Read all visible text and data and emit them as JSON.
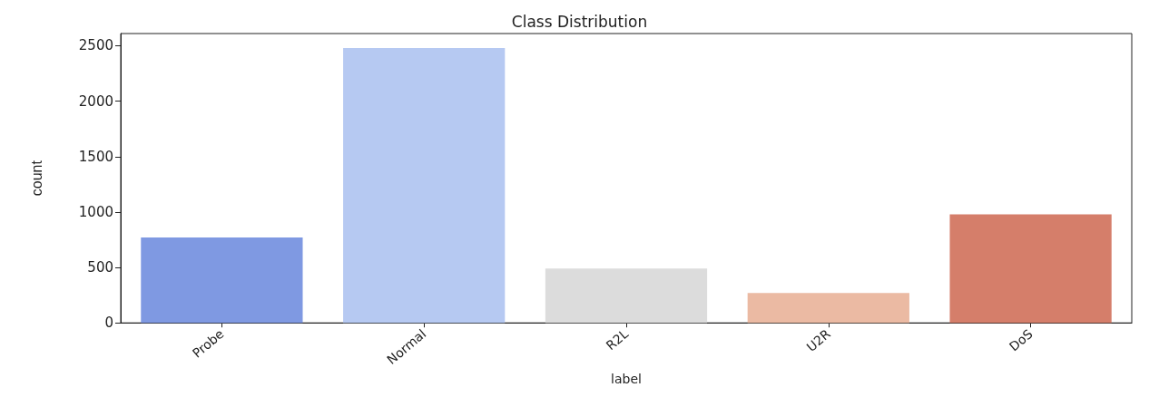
{
  "chart_data": {
    "type": "bar",
    "title": "Class Distribution",
    "xlabel": "label",
    "ylabel": "count",
    "categories": [
      "Probe",
      "Normal",
      "R2L",
      "U2R",
      "DoS"
    ],
    "values": [
      770,
      2480,
      490,
      270,
      980
    ],
    "colors": [
      "#7f99e2",
      "#b6c9f2",
      "#dcdcdc",
      "#ebbaa3",
      "#d57e6a"
    ],
    "ylim": [
      0,
      2610
    ],
    "yticks": [
      0,
      500,
      1000,
      1500,
      2000,
      2500
    ],
    "grid": false
  }
}
